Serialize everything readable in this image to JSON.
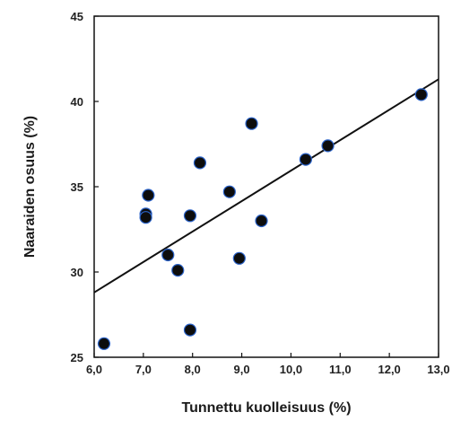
{
  "chart_data": {
    "type": "scatter",
    "title": "",
    "xlabel": "Tunnettu kuolleisuus (%)",
    "ylabel": "Naaraiden osuus (%)",
    "xlim": [
      6.0,
      13.0
    ],
    "ylim": [
      25,
      45
    ],
    "x_ticks": [
      "6,0",
      "7,0",
      "8,0",
      "9,0",
      "10,0",
      "11,0",
      "12,0",
      "13,0"
    ],
    "x_tick_values": [
      6,
      7,
      8,
      9,
      10,
      11,
      12,
      13
    ],
    "y_ticks": [
      "25",
      "30",
      "35",
      "40",
      "45"
    ],
    "y_tick_values": [
      25,
      30,
      35,
      40,
      45
    ],
    "grid": false,
    "series": [
      {
        "x": [
          6.2,
          7.1,
          7.05,
          7.05,
          7.5,
          7.7,
          7.95,
          7.95,
          8.15,
          8.75,
          8.95,
          9.2,
          9.4,
          10.3,
          10.75,
          12.65
        ],
        "y": [
          25.8,
          34.5,
          33.4,
          33.2,
          31.0,
          30.1,
          33.3,
          26.6,
          36.4,
          34.7,
          30.8,
          38.7,
          33.0,
          36.6,
          37.4,
          40.4
        ]
      }
    ],
    "trendline": {
      "x": [
        6.0,
        13.0
      ],
      "y": [
        28.8,
        41.3
      ]
    },
    "colors": {
      "point": "#0d0d0d",
      "point_rim": "#2b63c9",
      "line": "#111111",
      "axis": "#111111"
    }
  }
}
